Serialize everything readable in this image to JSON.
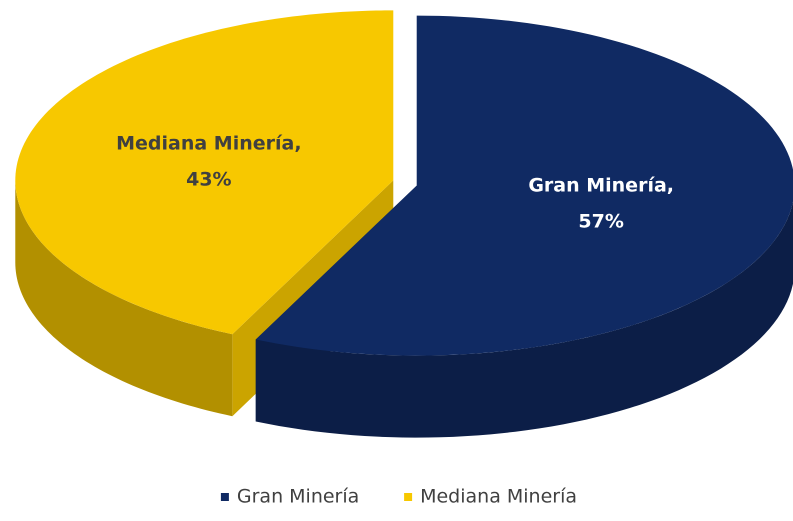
{
  "chart_data": {
    "type": "pie",
    "categories": [
      "Gran Minería",
      "Mediana Minería"
    ],
    "data_labels": [
      "Gran Minería,",
      "Mediana Minería,"
    ],
    "values": [
      57,
      43
    ],
    "value_labels": [
      "57%",
      "43%"
    ],
    "colors": [
      "#102a63",
      "#f7c800"
    ],
    "legend": "bottom"
  }
}
